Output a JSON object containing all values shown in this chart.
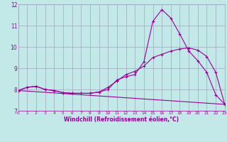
{
  "xlabel": "Windchill (Refroidissement éolien,°C)",
  "bg_color": "#c2e8e8",
  "line_color": "#990099",
  "grid_color": "#99aabb",
  "x_min": 0,
  "x_max": 23,
  "y_min": 7,
  "y_max": 12,
  "line1_x": [
    0,
    1,
    2,
    3,
    4,
    5,
    6,
    7,
    8,
    9,
    10,
    11,
    12,
    13,
    14,
    15,
    16,
    17,
    18,
    19,
    20,
    21,
    22,
    23
  ],
  "line1_y": [
    7.95,
    8.1,
    8.15,
    8.0,
    7.95,
    7.85,
    7.82,
    7.82,
    7.82,
    7.88,
    8.0,
    8.45,
    8.6,
    8.7,
    9.3,
    11.2,
    11.75,
    11.35,
    10.6,
    9.8,
    9.35,
    8.8,
    7.75,
    7.3
  ],
  "line2_x": [
    0,
    1,
    2,
    3,
    4,
    5,
    6,
    7,
    8,
    9,
    10,
    11,
    12,
    13,
    14,
    15,
    16,
    17,
    18,
    19,
    20,
    21,
    22,
    23
  ],
  "line2_y": [
    7.95,
    8.1,
    8.15,
    8.0,
    7.95,
    7.85,
    7.82,
    7.82,
    7.82,
    7.88,
    8.1,
    8.4,
    8.7,
    8.85,
    9.1,
    9.5,
    9.65,
    9.8,
    9.9,
    9.95,
    9.85,
    9.55,
    8.8,
    7.3
  ],
  "line3_x": [
    0,
    23
  ],
  "line3_y": [
    7.95,
    7.3
  ]
}
